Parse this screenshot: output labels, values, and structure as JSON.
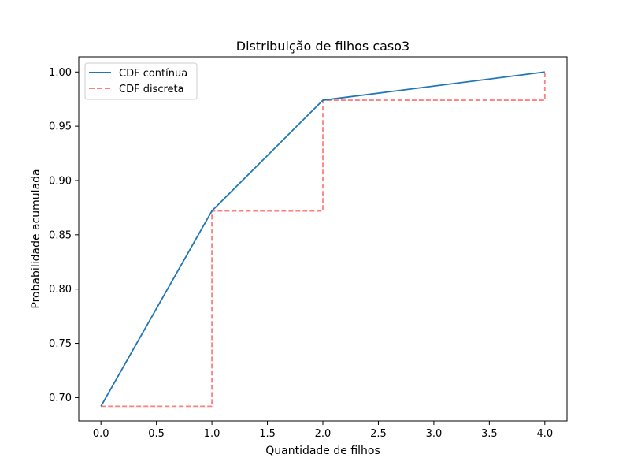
{
  "chart_data": {
    "type": "line",
    "title": "Distribuição de filhos caso3",
    "xlabel": "Quantidade de filhos",
    "ylabel": "Probabilidade acumulada",
    "xlim": [
      -0.2,
      4.2
    ],
    "ylim": [
      0.6785,
      1.014
    ],
    "x_ticks": [
      0.0,
      0.5,
      1.0,
      1.5,
      2.0,
      2.5,
      3.0,
      3.5,
      4.0
    ],
    "x_tick_labels": [
      "0.0",
      "0.5",
      "1.0",
      "1.5",
      "2.0",
      "2.5",
      "3.0",
      "3.5",
      "4.0"
    ],
    "y_ticks": [
      0.7,
      0.75,
      0.8,
      0.85,
      0.9,
      0.95,
      1.0
    ],
    "y_tick_labels": [
      "0.70",
      "0.75",
      "0.80",
      "0.85",
      "0.90",
      "0.95",
      "1.00"
    ],
    "grid": false,
    "legend_position": "top-left",
    "series": [
      {
        "name": "CDF contínua",
        "style": "solid",
        "color": "#1f77b4",
        "x": [
          0,
          1,
          2,
          4
        ],
        "y": [
          0.692,
          0.872,
          0.974,
          1.0
        ]
      },
      {
        "name": "CDF discreta",
        "style": "dashed-step",
        "color": "#ff7f7f",
        "x": [
          0,
          1,
          1,
          2,
          2,
          4,
          4
        ],
        "y": [
          0.692,
          0.692,
          0.872,
          0.872,
          0.974,
          0.974,
          1.0
        ]
      }
    ]
  }
}
